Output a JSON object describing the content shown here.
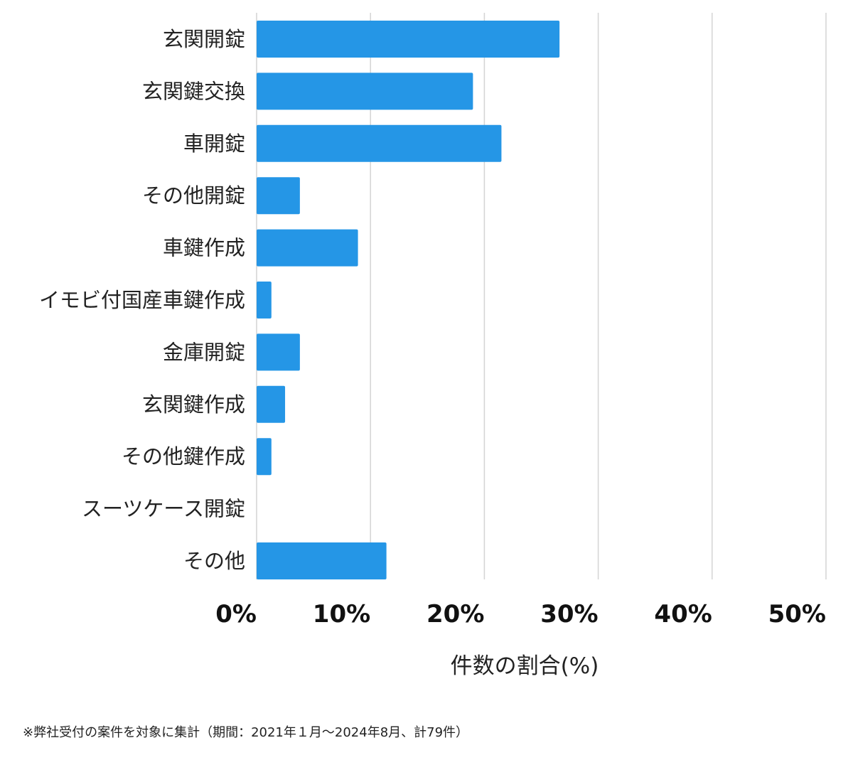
{
  "chart_data": {
    "type": "bar",
    "orientation": "horizontal",
    "categories": [
      "玄関開錠",
      "玄関鍵交換",
      "車開錠",
      "その他開錠",
      "車鍵作成",
      "イモビ付国産車鍵作成",
      "金庫開錠",
      "玄関鍵作成",
      "その他鍵作成",
      "スーツケース開錠",
      "その他"
    ],
    "values": [
      26.6,
      19.0,
      21.5,
      3.8,
      8.9,
      1.3,
      3.8,
      2.5,
      1.3,
      0,
      11.4
    ],
    "xlabel": "件数の割合(%)",
    "xlim": [
      0,
      50
    ],
    "xticks": [
      "0%",
      "10%",
      "20%",
      "30%",
      "40%",
      "50%"
    ],
    "grid": true,
    "bar_color": "#2596e6",
    "grid_color": "#d4d4d4"
  },
  "footnote": "※弊社受付の案件を対象に集計（期間：2021年１月〜2024年8月、計79件）"
}
